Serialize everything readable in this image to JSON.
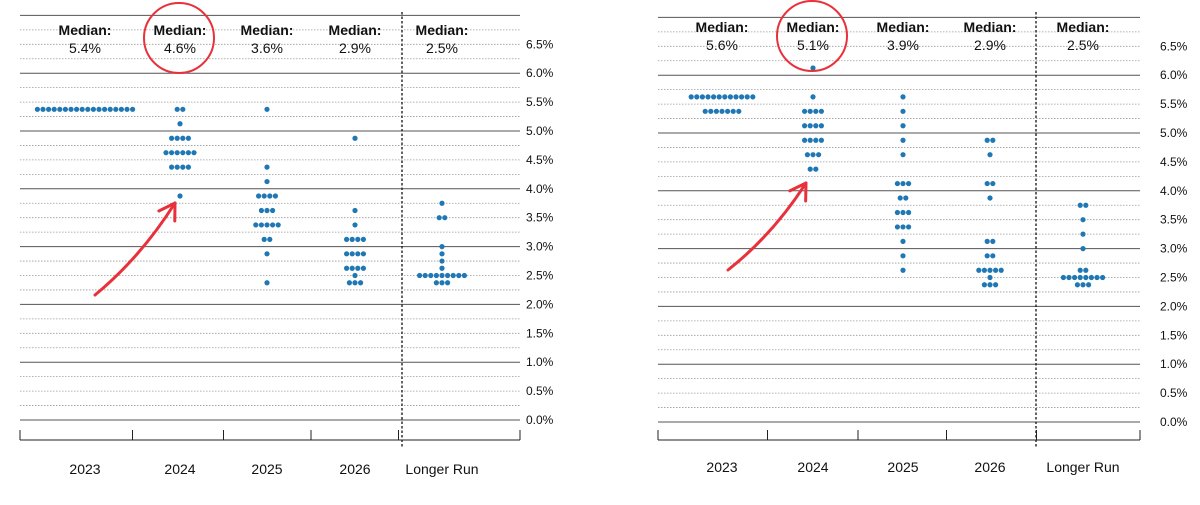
{
  "chart_data": [
    {
      "type": "scatter",
      "subtype": "dot-plot",
      "categories": [
        "2023",
        "2024",
        "2025",
        "2026",
        "Longer Run"
      ],
      "median_label": "Median:",
      "medians": [
        "5.4%",
        "4.6%",
        "3.6%",
        "2.9%",
        "2.5%"
      ],
      "y_ticks": [
        "0.0%",
        "0.5%",
        "1.0%",
        "1.5%",
        "2.0%",
        "2.5%",
        "3.0%",
        "3.5%",
        "4.0%",
        "4.5%",
        "5.0%",
        "5.5%",
        "6.0%",
        "6.5%"
      ],
      "ylim": [
        0,
        6.5
      ],
      "grid": "dotted every 0.25, solid every 1.0",
      "dot_color": "#1f77b4",
      "annotation_color": "#e8313a",
      "highlight_category": "2024",
      "points": [
        {
          "category": "2023",
          "y": 5.375,
          "count": 18
        },
        {
          "category": "2024",
          "y": 5.375,
          "count": 2
        },
        {
          "category": "2024",
          "y": 5.125,
          "count": 1
        },
        {
          "category": "2024",
          "y": 4.875,
          "count": 4
        },
        {
          "category": "2024",
          "y": 4.625,
          "count": 6
        },
        {
          "category": "2024",
          "y": 4.375,
          "count": 4
        },
        {
          "category": "2024",
          "y": 3.875,
          "count": 1
        },
        {
          "category": "2025",
          "y": 5.375,
          "count": 1
        },
        {
          "category": "2025",
          "y": 4.375,
          "count": 1
        },
        {
          "category": "2025",
          "y": 4.125,
          "count": 1
        },
        {
          "category": "2025",
          "y": 3.875,
          "count": 4
        },
        {
          "category": "2025",
          "y": 3.625,
          "count": 3
        },
        {
          "category": "2025",
          "y": 3.375,
          "count": 5
        },
        {
          "category": "2025",
          "y": 3.125,
          "count": 2
        },
        {
          "category": "2025",
          "y": 2.875,
          "count": 1
        },
        {
          "category": "2025",
          "y": 2.375,
          "count": 1
        },
        {
          "category": "2026",
          "y": 4.875,
          "count": 1
        },
        {
          "category": "2026",
          "y": 3.625,
          "count": 1
        },
        {
          "category": "2026",
          "y": 3.375,
          "count": 1
        },
        {
          "category": "2026",
          "y": 3.125,
          "count": 4
        },
        {
          "category": "2026",
          "y": 2.875,
          "count": 4
        },
        {
          "category": "2026",
          "y": 2.625,
          "count": 4
        },
        {
          "category": "2026",
          "y": 2.5,
          "count": 1
        },
        {
          "category": "2026",
          "y": 2.375,
          "count": 3
        },
        {
          "category": "Longer Run",
          "y": 3.75,
          "count": 1
        },
        {
          "category": "Longer Run",
          "y": 3.5,
          "count": 2
        },
        {
          "category": "Longer Run",
          "y": 3.0,
          "count": 1
        },
        {
          "category": "Longer Run",
          "y": 2.875,
          "count": 1
        },
        {
          "category": "Longer Run",
          "y": 2.75,
          "count": 1
        },
        {
          "category": "Longer Run",
          "y": 2.625,
          "count": 1
        },
        {
          "category": "Longer Run",
          "y": 2.5,
          "count": 9
        },
        {
          "category": "Longer Run",
          "y": 2.375,
          "count": 3
        }
      ]
    },
    {
      "type": "scatter",
      "subtype": "dot-plot",
      "categories": [
        "2023",
        "2024",
        "2025",
        "2026",
        "Longer Run"
      ],
      "median_label": "Median:",
      "medians": [
        "5.6%",
        "5.1%",
        "3.9%",
        "2.9%",
        "2.5%"
      ],
      "y_ticks": [
        "0.0%",
        "0.5%",
        "1.0%",
        "1.5%",
        "2.0%",
        "2.5%",
        "3.0%",
        "3.5%",
        "4.0%",
        "4.5%",
        "5.0%",
        "5.5%",
        "6.0%",
        "6.5%"
      ],
      "ylim": [
        0,
        6.5
      ],
      "grid": "dotted every 0.25, solid every 1.0",
      "dot_color": "#1f77b4",
      "annotation_color": "#e8313a",
      "highlight_category": "2024",
      "points": [
        {
          "category": "2023",
          "y": 5.625,
          "count": 12
        },
        {
          "category": "2023",
          "y": 5.375,
          "count": 7
        },
        {
          "category": "2024",
          "y": 6.125,
          "count": 1
        },
        {
          "category": "2024",
          "y": 5.625,
          "count": 1
        },
        {
          "category": "2024",
          "y": 5.375,
          "count": 4
        },
        {
          "category": "2024",
          "y": 5.125,
          "count": 4
        },
        {
          "category": "2024",
          "y": 4.875,
          "count": 4
        },
        {
          "category": "2024",
          "y": 4.625,
          "count": 3
        },
        {
          "category": "2024",
          "y": 4.375,
          "count": 2
        },
        {
          "category": "2025",
          "y": 5.625,
          "count": 1
        },
        {
          "category": "2025",
          "y": 5.375,
          "count": 1
        },
        {
          "category": "2025",
          "y": 5.125,
          "count": 1
        },
        {
          "category": "2025",
          "y": 4.875,
          "count": 1
        },
        {
          "category": "2025",
          "y": 4.625,
          "count": 1
        },
        {
          "category": "2025",
          "y": 4.125,
          "count": 3
        },
        {
          "category": "2025",
          "y": 3.875,
          "count": 2
        },
        {
          "category": "2025",
          "y": 3.625,
          "count": 3
        },
        {
          "category": "2025",
          "y": 3.375,
          "count": 3
        },
        {
          "category": "2025",
          "y": 3.125,
          "count": 1
        },
        {
          "category": "2025",
          "y": 2.875,
          "count": 1
        },
        {
          "category": "2025",
          "y": 2.625,
          "count": 1
        },
        {
          "category": "2026",
          "y": 4.875,
          "count": 2
        },
        {
          "category": "2026",
          "y": 4.625,
          "count": 1
        },
        {
          "category": "2026",
          "y": 4.125,
          "count": 2
        },
        {
          "category": "2026",
          "y": 3.875,
          "count": 1
        },
        {
          "category": "2026",
          "y": 3.125,
          "count": 2
        },
        {
          "category": "2026",
          "y": 2.875,
          "count": 2
        },
        {
          "category": "2026",
          "y": 2.625,
          "count": 5
        },
        {
          "category": "2026",
          "y": 2.5,
          "count": 1
        },
        {
          "category": "2026",
          "y": 2.375,
          "count": 3
        },
        {
          "category": "Longer Run",
          "y": 3.75,
          "count": 2
        },
        {
          "category": "Longer Run",
          "y": 3.5,
          "count": 1
        },
        {
          "category": "Longer Run",
          "y": 3.25,
          "count": 1
        },
        {
          "category": "Longer Run",
          "y": 3.0,
          "count": 1
        },
        {
          "category": "Longer Run",
          "y": 2.625,
          "count": 2
        },
        {
          "category": "Longer Run",
          "y": 2.5,
          "count": 8
        },
        {
          "category": "Longer Run",
          "y": 2.375,
          "count": 3
        }
      ]
    }
  ]
}
